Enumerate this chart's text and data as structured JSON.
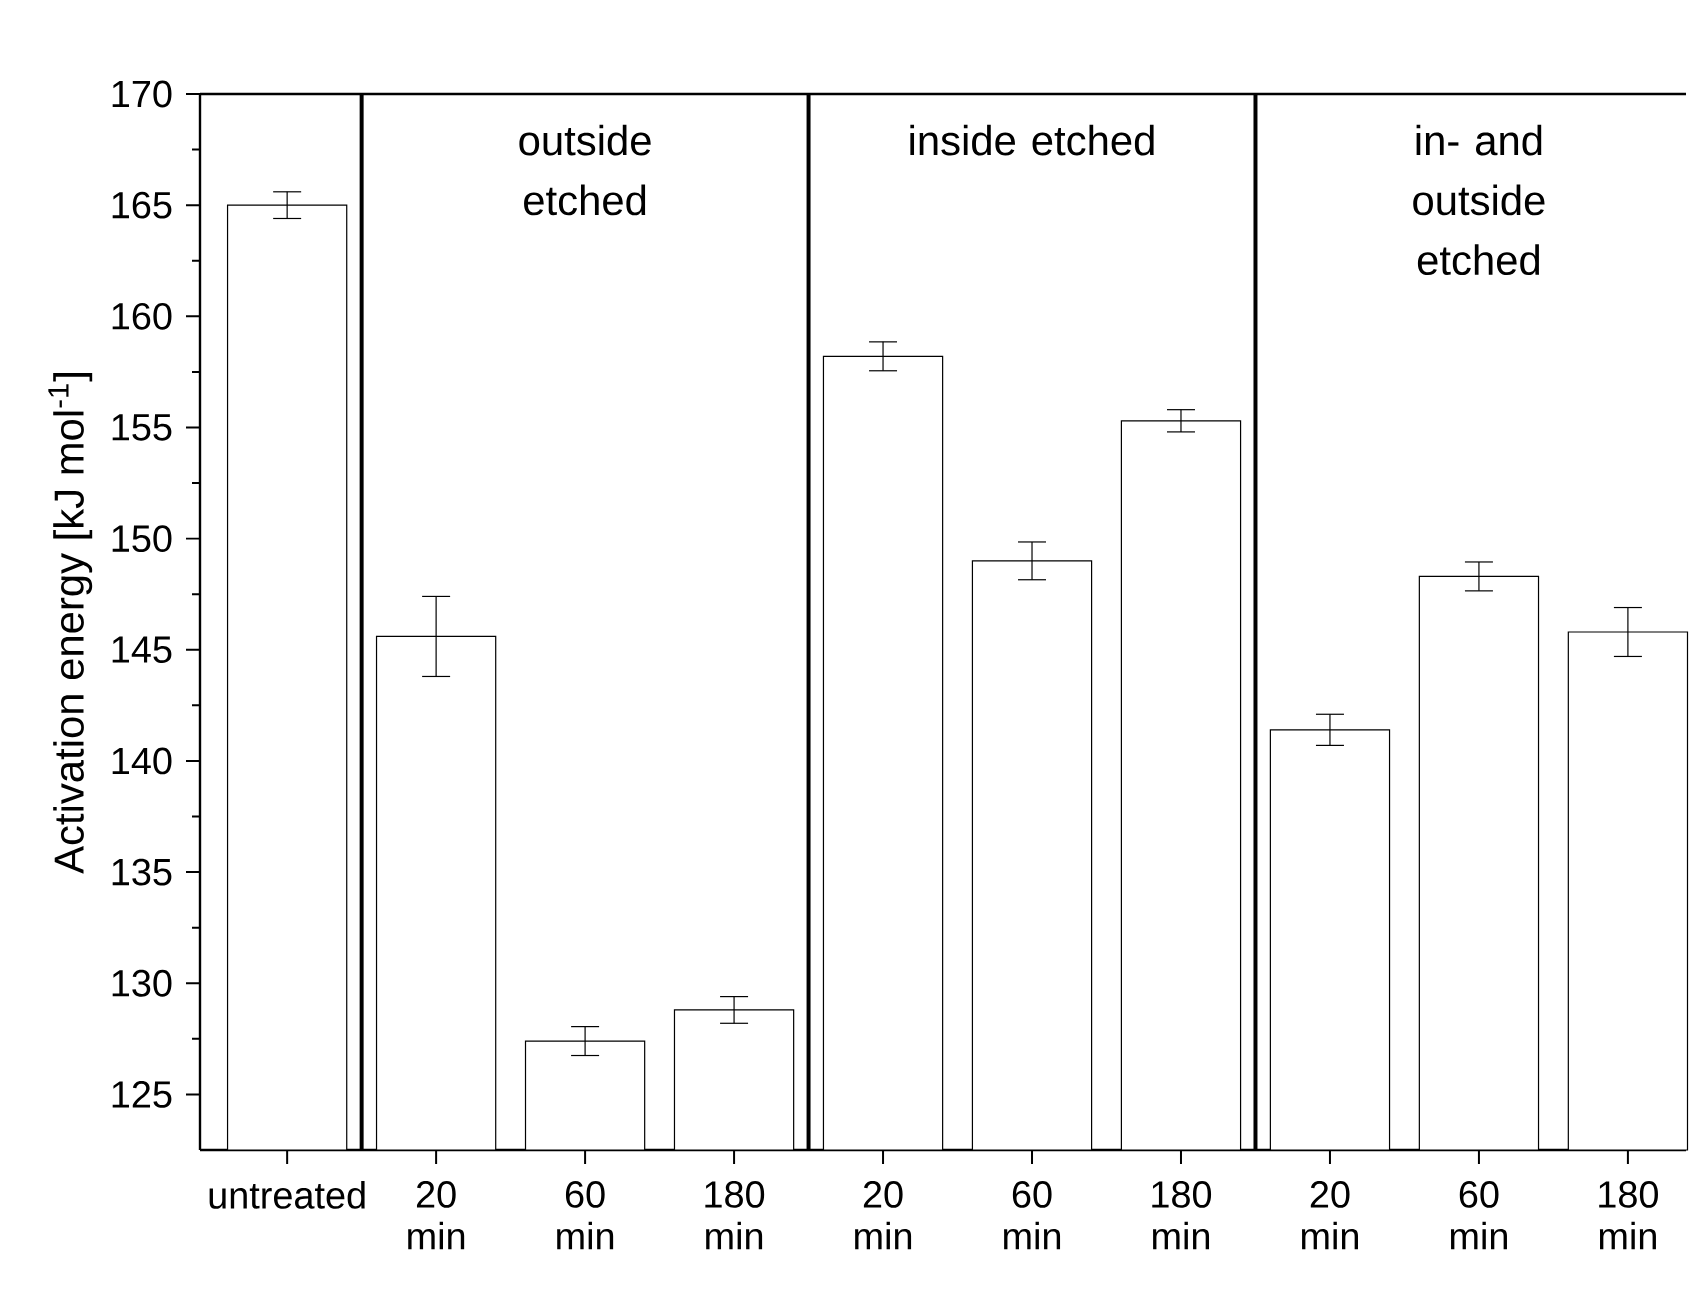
{
  "chart_data": {
    "type": "bar",
    "ylabel": "Activation energy [kJ mol$^{-1}$]",
    "categories": [
      "untreated",
      "20 min",
      "60 min",
      "180 min",
      "20 min",
      "60 min",
      "180 min",
      "20 min",
      "60 min",
      "180 min"
    ],
    "values": [
      165.0,
      145.6,
      127.4,
      128.8,
      158.2,
      149.0,
      155.3,
      141.4,
      148.3,
      145.8
    ],
    "errors": [
      0.6,
      1.8,
      0.65,
      0.6,
      0.65,
      0.85,
      0.5,
      0.7,
      0.65,
      1.1
    ],
    "color": "#000000",
    "ylim": [
      122.5,
      170
    ],
    "yticks": [
      125,
      130,
      135,
      140,
      145,
      150,
      155,
      160,
      165,
      170
    ],
    "annotations": [
      "outside etched",
      "inside etched",
      "in- and outside etched"
    ]
  }
}
